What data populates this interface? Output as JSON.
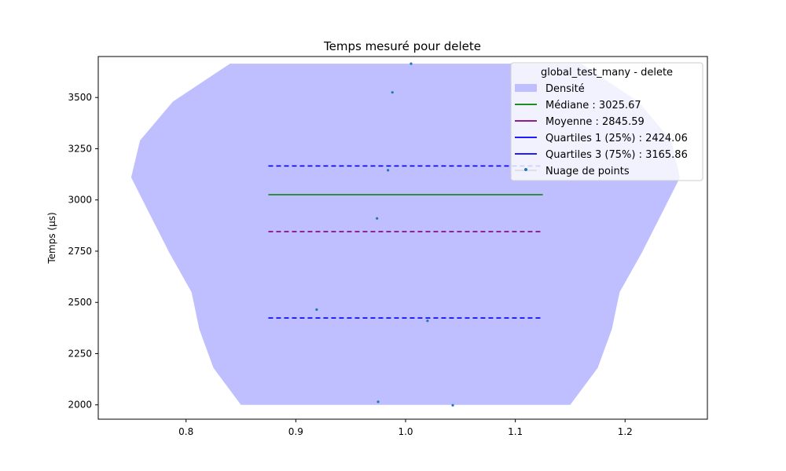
{
  "chart_data": {
    "type": "violin",
    "title": "Temps mesuré pour delete",
    "xlabel": "",
    "ylabel": "Temps (µs)",
    "xlim": [
      0.72,
      1.275
    ],
    "ylim": [
      1930,
      3700
    ],
    "xticks": [
      "0.8",
      "0.9",
      "1.0",
      "1.1",
      "1.2"
    ],
    "yticks": [
      "2000",
      "2250",
      "2500",
      "2750",
      "3000",
      "3250",
      "3500"
    ],
    "grid": false,
    "legend": {
      "title": "global_test_many - delete",
      "placement": "top-right",
      "entries": [
        {
          "key": "density",
          "label": "Densité",
          "color": "#bfbfff",
          "style": "patch"
        },
        {
          "key": "median",
          "label": "Médiane : 3025.67",
          "color": "#008000",
          "style": "solid"
        },
        {
          "key": "mean",
          "label": "Moyenne : 2845.59",
          "color": "#800080",
          "style": "solid"
        },
        {
          "key": "q1",
          "label": "Quartiles 1 (25%) : 2424.06",
          "color": "#0000ff",
          "style": "solid"
        },
        {
          "key": "q3",
          "label": "Quartiles 3 (75%) : 3165.86",
          "color": "#0000ff",
          "style": "solid"
        },
        {
          "key": "points",
          "label": "Nuage de points",
          "color": "#1f77b4",
          "style": "marker"
        }
      ]
    },
    "density_outline": [
      {
        "y": 2000,
        "half_width": 0.15
      },
      {
        "y": 2180,
        "half_width": 0.175
      },
      {
        "y": 2370,
        "half_width": 0.188
      },
      {
        "y": 2550,
        "half_width": 0.195
      },
      {
        "y": 2740,
        "half_width": 0.215
      },
      {
        "y": 2930,
        "half_width": 0.233
      },
      {
        "y": 3110,
        "half_width": 0.25
      },
      {
        "y": 3290,
        "half_width": 0.242
      },
      {
        "y": 3480,
        "half_width": 0.212
      },
      {
        "y": 3665,
        "half_width": 0.16
      }
    ],
    "center": 1.0,
    "stats": {
      "median": 3025.67,
      "mean": 2845.59,
      "q1": 2424.06,
      "q3": 3165.86,
      "median_x": [
        0.875,
        1.125
      ],
      "mean_x": [
        0.875,
        1.125
      ],
      "quartile_x": [
        0.875,
        1.125
      ]
    },
    "points": [
      {
        "x": 1.005,
        "y": 3665
      },
      {
        "x": 0.988,
        "y": 3525
      },
      {
        "x": 0.984,
        "y": 3145
      },
      {
        "x": 0.974,
        "y": 2910
      },
      {
        "x": 0.919,
        "y": 2465
      },
      {
        "x": 1.02,
        "y": 2410
      },
      {
        "x": 0.975,
        "y": 2015
      },
      {
        "x": 1.043,
        "y": 1998
      }
    ]
  }
}
